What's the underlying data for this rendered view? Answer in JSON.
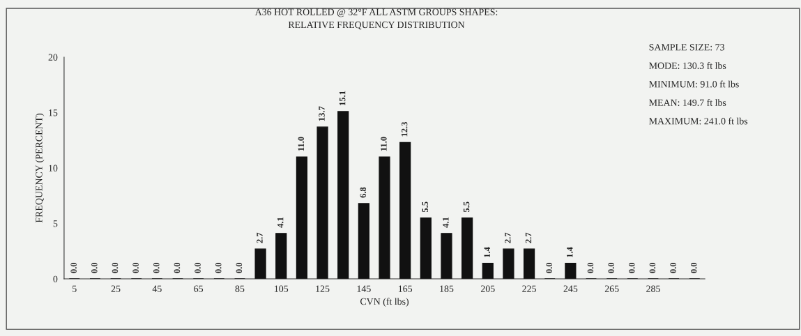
{
  "chart_data": {
    "type": "bar",
    "title": "A36 HOT ROLLED @ 32°F ALL ASTM GROUPS SHAPES:\nRELATIVE FREQUENCY DISTRIBUTION",
    "xlabel": "CVN (ft lbs)",
    "ylabel": "FREQUENCY (PERCENT)",
    "categories": [
      "5",
      null,
      "25",
      null,
      "45",
      null,
      "65",
      null,
      "85",
      null,
      "105",
      null,
      "125",
      null,
      "145",
      null,
      "165",
      null,
      "185",
      null,
      "205",
      null,
      "225",
      null,
      "245",
      null,
      "265",
      null,
      "285",
      null,
      null
    ],
    "values": [
      0.0,
      0.0,
      0.0,
      0.0,
      0.0,
      0.0,
      0.0,
      0.0,
      0.0,
      2.7,
      4.1,
      11.0,
      13.7,
      15.1,
      6.8,
      11.0,
      12.3,
      5.5,
      4.1,
      5.5,
      1.4,
      2.7,
      2.7,
      0.0,
      1.4,
      0.0,
      0.0,
      0.0,
      0.0,
      0.0,
      0.0
    ],
    "color": "#111111",
    "ylim": [
      0,
      20
    ],
    "yticks": [
      0,
      5,
      10,
      15,
      20
    ],
    "grid": false,
    "value_labels": [
      "0.0",
      "0.0",
      "0.0",
      "0.0",
      "0.0",
      "0.0",
      "0.0",
      "0.0",
      "0.0",
      "2.7",
      "4.1",
      "11.0",
      "13.7",
      "15.1",
      "6.8",
      "11.0",
      "12.3",
      "5.5",
      "4.1",
      "5.5",
      "1.4",
      "2.7",
      "2.7",
      "0.0",
      "1.4",
      "0.0",
      "0.0",
      "0.0",
      "0.0",
      "0.0",
      "0.0"
    ],
    "annotations": [
      "SAMPLE SIZE: 73",
      "MODE: 130.3 ft lbs",
      "MINIMUM: 91.0 ft lbs",
      "MEAN: 149.7 ft lbs",
      "MAXIMUM: 241.0 ft lbs"
    ]
  }
}
